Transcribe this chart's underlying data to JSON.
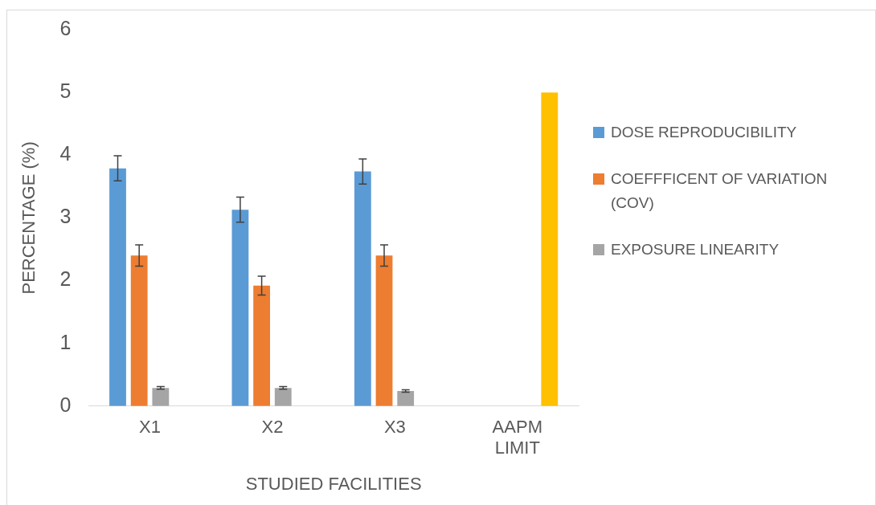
{
  "chart_data": {
    "type": "bar",
    "xlabel": "STUDIED FACILITIES",
    "ylabel": "PERCENTAGE (%)",
    "categories": [
      "X1",
      "X2",
      "X3",
      "AAPM LIMIT"
    ],
    "series": [
      {
        "name": "DOSE REPRODUCIBILITY",
        "color": "#5b9bd5",
        "values": [
          3.79,
          3.13,
          3.74,
          null
        ],
        "errors": [
          0.2,
          0.2,
          0.2,
          null
        ]
      },
      {
        "name": "COEFFFICENT OF VARIATION (COV)",
        "color": "#ed7d31",
        "values": [
          2.4,
          1.92,
          2.4,
          null
        ],
        "errors": [
          0.17,
          0.15,
          0.17,
          null
        ]
      },
      {
        "name": "EXPOSURE LINEARITY",
        "color": "#a5a5a5",
        "values": [
          0.29,
          0.29,
          0.24,
          null
        ],
        "errors": [
          0.02,
          0.02,
          0.02,
          null
        ]
      },
      {
        "color": "#ffc000",
        "values": [
          null,
          null,
          null,
          5
        ]
      }
    ],
    "ylim": [
      0,
      6
    ],
    "yticks": [
      0,
      1,
      2,
      3,
      4,
      5,
      6
    ],
    "grid": false,
    "legend": "right"
  }
}
